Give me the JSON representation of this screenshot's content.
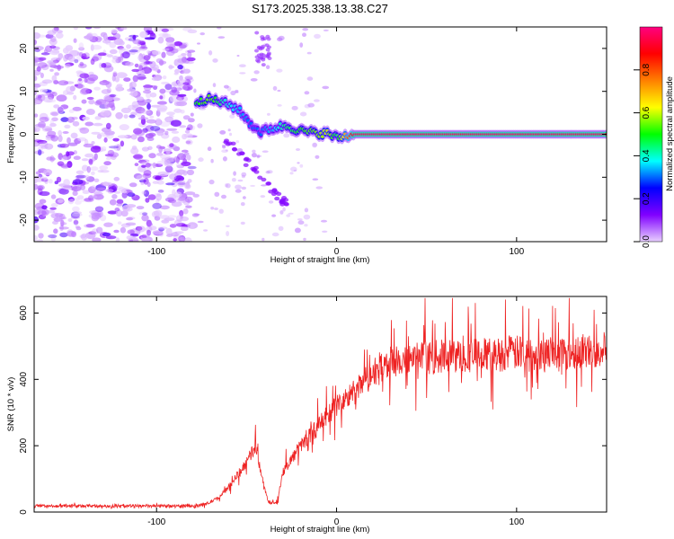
{
  "chart_data": [
    {
      "type": "heatmap",
      "title": "S173.2025.338.13.38.C27",
      "xlabel": "Height of straight line (km)",
      "ylabel": "Frequency (Hz)",
      "xlim": [
        -168,
        150
      ],
      "ylim": [
        -25,
        25
      ],
      "xticks": [
        -100,
        0,
        100
      ],
      "yticks": [
        20,
        10,
        0,
        -10,
        -20
      ],
      "colorbar": {
        "label": "Normalized spectral amplitude",
        "range": [
          0.0,
          1.0
        ],
        "ticks": [
          0.0,
          0.2,
          0.4,
          0.6,
          0.8
        ],
        "tick_labels": [
          "0.0",
          "0.2",
          "0.4",
          "0.6",
          "0.8"
        ],
        "colormap": [
          "#e8d0ff",
          "#8000ff",
          "#0000ff",
          "#00ffff",
          "#00ff00",
          "#ffff00",
          "#ff8000",
          "#ff0000",
          "#ff0080"
        ]
      },
      "ridge": [
        {
          "x": -78,
          "y": 7.8,
          "v": 0.5
        },
        {
          "x": -70,
          "y": 8.2,
          "v": 0.55
        },
        {
          "x": -62,
          "y": 7.2,
          "v": 0.4
        },
        {
          "x": -55,
          "y": 6.0,
          "v": 0.35
        },
        {
          "x": -48,
          "y": 2.5,
          "v": 0.3
        },
        {
          "x": -42,
          "y": 0.5,
          "v": 0.3
        },
        {
          "x": -35,
          "y": 1.5,
          "v": 0.35
        },
        {
          "x": -28,
          "y": 2.0,
          "v": 0.45
        },
        {
          "x": -20,
          "y": 0.8,
          "v": 0.5
        },
        {
          "x": -12,
          "y": 0.3,
          "v": 0.55
        },
        {
          "x": -5,
          "y": 0.2,
          "v": 0.6
        },
        {
          "x": 0,
          "y": -0.8,
          "v": 0.45
        },
        {
          "x": 10,
          "y": 0.0,
          "v": 0.95
        },
        {
          "x": 150,
          "y": 0.0,
          "v": 0.95
        }
      ]
    },
    {
      "type": "line",
      "title": "",
      "xlabel": "Height of straight line (km)",
      "ylabel": "SNR (10 * v/v)",
      "xlim": [
        -168,
        150
      ],
      "ylim": [
        0,
        650
      ],
      "xticks": [
        -100,
        0,
        100
      ],
      "yticks": [
        0,
        200,
        400,
        600
      ],
      "series": [
        {
          "name": "SNR",
          "color": "#ee2222",
          "envelope_x": [
            -168,
            -80,
            -72,
            -65,
            -58,
            -50,
            -45,
            -42,
            -38,
            -33,
            -30,
            -25,
            -20,
            -15,
            -10,
            -5,
            0,
            5,
            10,
            15,
            20,
            25,
            30,
            40,
            50,
            60,
            70,
            80,
            90,
            100,
            110,
            120,
            130,
            140,
            150
          ],
          "envelope_y": [
            18,
            18,
            25,
            45,
            90,
            150,
            200,
            120,
            30,
            25,
            120,
            160,
            200,
            230,
            260,
            290,
            320,
            340,
            360,
            390,
            420,
            440,
            450,
            460,
            465,
            470,
            470,
            475,
            475,
            480,
            480,
            480,
            485,
            485,
            490
          ]
        }
      ]
    }
  ]
}
